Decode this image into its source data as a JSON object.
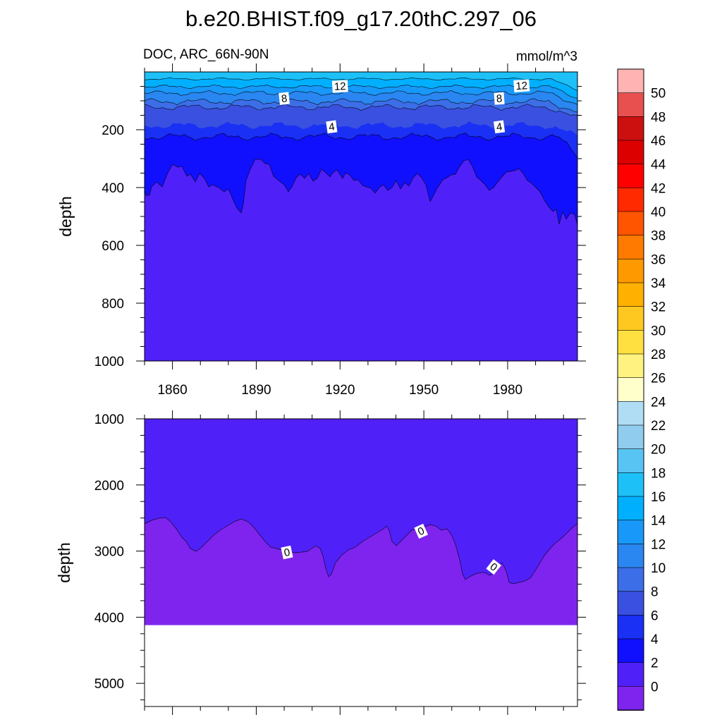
{
  "chart_data": {
    "type": "heatmap",
    "title": "b.e20.BHIST.f09_g17.20thC.297_06",
    "left_label": "DOC, ARC_66N-90N",
    "right_label": "mmol/m^3",
    "x_range": [
      1850,
      2005
    ],
    "x_ticks": [
      "1860",
      "1890",
      "1920",
      "1950",
      "1980"
    ],
    "x_tick_values": [
      1860,
      1890,
      1920,
      1950,
      1980
    ],
    "top_panel": {
      "ylabel": "depth",
      "ylim": [
        0,
        1000
      ],
      "y_ticks": [
        "200",
        "400",
        "600",
        "800",
        "1000"
      ],
      "y_tick_values": [
        200,
        400,
        600,
        800,
        1000
      ],
      "contour_labels": [
        {
          "text": "12",
          "year": 1920,
          "depth": 50
        },
        {
          "text": "12",
          "year": 1985,
          "depth": 48
        },
        {
          "text": "8",
          "year": 1900,
          "depth": 92
        },
        {
          "text": "8",
          "year": 1977,
          "depth": 92
        },
        {
          "text": "4",
          "year": 1917,
          "depth": 190
        },
        {
          "text": "4",
          "year": 1977,
          "depth": 190
        }
      ]
    },
    "bottom_panel": {
      "ylabel": "depth",
      "ylim": [
        1000,
        5350
      ],
      "y_ticks": [
        "1000",
        "2000",
        "3000",
        "4000",
        "5000"
      ],
      "y_tick_values": [
        1000,
        2000,
        3000,
        4000,
        5000
      ],
      "ocean_floor_depth": 4120,
      "contour_labels": [
        {
          "text": "0",
          "year": 1901,
          "depth": 3020
        },
        {
          "text": "0",
          "year": 1949,
          "depth": 2700
        },
        {
          "text": "0",
          "year": 1975,
          "depth": 3240
        }
      ]
    },
    "colorbar": {
      "labels": [
        "50",
        "48",
        "46",
        "44",
        "42",
        "40",
        "38",
        "36",
        "34",
        "32",
        "30",
        "28",
        "26",
        "24",
        "22",
        "20",
        "18",
        "16",
        "14",
        "12",
        "10",
        "8",
        "6",
        "4",
        "2",
        "0"
      ],
      "colors": [
        "#ffb3b3",
        "#e85050",
        "#cc1010",
        "#dd0000",
        "#ff0000",
        "#ff2a00",
        "#ff5500",
        "#ff7a00",
        "#ff9900",
        "#ffb000",
        "#ffc820",
        "#ffe040",
        "#fff280",
        "#ffffcc",
        "#b0dcf4",
        "#90ccee",
        "#58c4f4",
        "#1ec0f8",
        "#00b0ff",
        "#1898f8",
        "#2a86f0",
        "#3c6ee8",
        "#3a50e0",
        "#1a30f4",
        "#1010ff",
        "#5020f8",
        "#7e24ee"
      ]
    },
    "fill_colors": {
      "band_gt_16": "#1ec0f8",
      "band_14_16": "#00b0ff",
      "band_12_14": "#1898f8",
      "band_10_12": "#2a86f0",
      "band_8_10": "#3c6ee8",
      "band_6_8": "#3a50e0",
      "band_4_6": "#1a30f4",
      "band_2_4": "#1010ff",
      "band_0_2": "#5020f8",
      "band_lt_0": "#7e24ee"
    }
  }
}
